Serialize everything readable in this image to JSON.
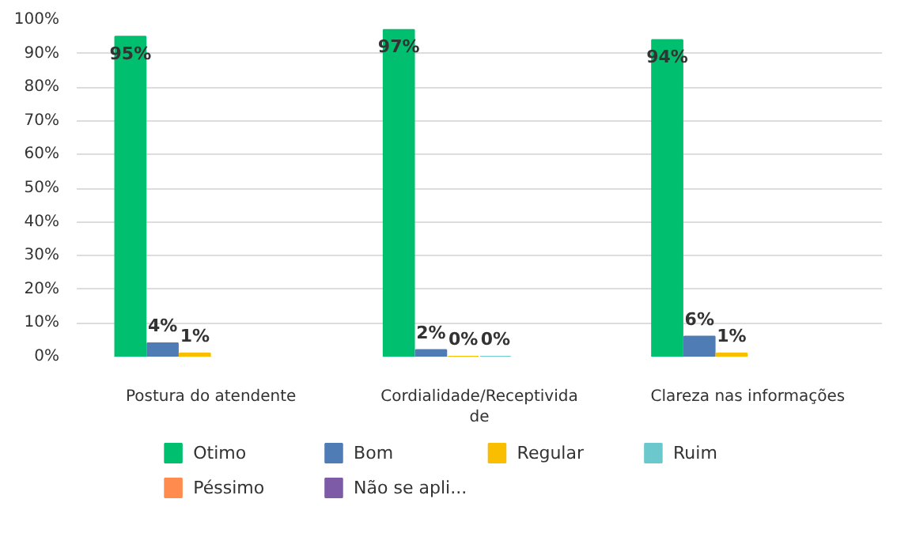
{
  "chart_data": {
    "type": "bar",
    "categories": [
      "Postura do atendente",
      "Cordialidade/Receptividade",
      "Clareza nas informações"
    ],
    "ylim": [
      0,
      100
    ],
    "yticks": [
      {
        "value": 0,
        "label": "0%"
      },
      {
        "value": 10,
        "label": "10%"
      },
      {
        "value": 20,
        "label": "20%"
      },
      {
        "value": 30,
        "label": "30%"
      },
      {
        "value": 40,
        "label": "40%"
      },
      {
        "value": 50,
        "label": "50%"
      },
      {
        "value": 60,
        "label": "60%"
      },
      {
        "value": 70,
        "label": "70%"
      },
      {
        "value": 80,
        "label": "80%"
      },
      {
        "value": 90,
        "label": "90%"
      },
      {
        "value": 100,
        "label": "100%"
      }
    ],
    "grid": "y",
    "legend": "bottom",
    "series": [
      {
        "name": "Otimo",
        "color": "#00bf6f",
        "values": [
          95,
          97,
          94
        ],
        "value_labels": [
          "95%",
          "97%",
          "94%"
        ]
      },
      {
        "name": "Bom",
        "color": "#507cb6",
        "values": [
          4,
          2,
          6
        ],
        "value_labels": [
          "4%",
          "2%",
          "6%"
        ]
      },
      {
        "name": "Regular",
        "color": "#f9be00",
        "values": [
          1,
          0,
          1
        ],
        "value_labels": [
          "1%",
          "0%",
          "1%"
        ]
      },
      {
        "name": "Ruim",
        "color": "#6bc8cd",
        "values": [
          null,
          0,
          null
        ],
        "value_labels": [
          null,
          "0%",
          null
        ]
      },
      {
        "name": "Péssimo",
        "color": "#ff8b4f",
        "values": [
          null,
          null,
          null
        ]
      },
      {
        "name": "Não se apli...",
        "color": "#7d5ba6",
        "values": [
          null,
          null,
          null
        ]
      }
    ]
  }
}
